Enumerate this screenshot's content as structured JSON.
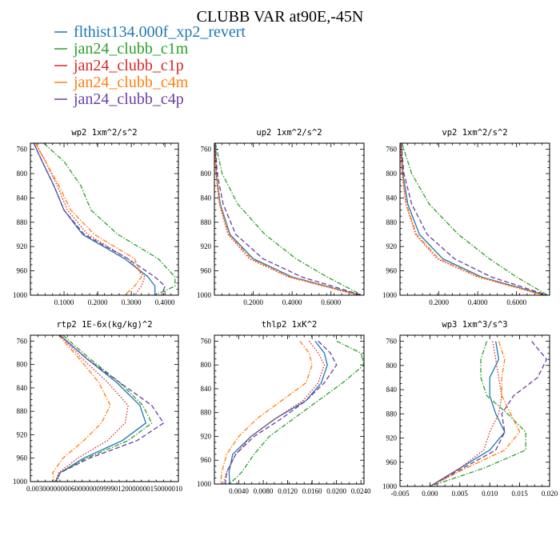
{
  "figure": {
    "title": "CLUBB VAR at90E,-45N",
    "legend": [
      {
        "label": "flthist134.000f_xp2_revert",
        "color": "#1f77b4",
        "dash": "solid"
      },
      {
        "label": "jan24_clubb_c1m",
        "color": "#2ca02c",
        "dash": "dashdot"
      },
      {
        "label": "jan24_clubb_c1p",
        "color": "#d62728",
        "dash": "dotted"
      },
      {
        "label": "jan24_clubb_c4m",
        "color": "#ff7f0e",
        "dash": "dashdot"
      },
      {
        "label": "jan24_clubb_c4p",
        "color": "#6b3fa0",
        "dash": "dashed"
      }
    ]
  },
  "chart_data": [
    {
      "type": "line",
      "title": "wp2  1xm^2/s^2",
      "xlim": [
        0,
        0.44
      ],
      "ylim": [
        750,
        1000
      ],
      "y_inverted": true,
      "yticks": [
        760,
        800,
        840,
        880,
        920,
        960,
        1000
      ],
      "xticks": [
        0.1,
        0.2,
        0.3,
        0.4
      ],
      "xtick_labels": [
        "0.1000",
        "0.2000",
        "0.3000",
        "0.4000"
      ],
      "series": [
        {
          "y": [
            750,
            780,
            820,
            860,
            900,
            940,
            970,
            985,
            1000
          ],
          "x": [
            0.01,
            0.035,
            0.07,
            0.1,
            0.155,
            0.28,
            0.35,
            0.37,
            0.37
          ]
        },
        {
          "y": [
            750,
            780,
            820,
            860,
            900,
            940,
            970,
            985,
            1000
          ],
          "x": [
            0.04,
            0.1,
            0.15,
            0.18,
            0.26,
            0.38,
            0.43,
            0.43,
            0.37
          ]
        },
        {
          "y": [
            750,
            780,
            820,
            860,
            900,
            940,
            970,
            985,
            1000
          ],
          "x": [
            0.015,
            0.045,
            0.08,
            0.11,
            0.17,
            0.29,
            0.34,
            0.33,
            0.31
          ]
        },
        {
          "y": [
            750,
            780,
            820,
            860,
            900,
            940,
            970,
            985,
            1000
          ],
          "x": [
            0.015,
            0.045,
            0.085,
            0.12,
            0.19,
            0.31,
            0.33,
            0.31,
            0.28
          ]
        },
        {
          "y": [
            750,
            780,
            820,
            860,
            900,
            940,
            970,
            985,
            1000
          ],
          "x": [
            0.01,
            0.035,
            0.07,
            0.1,
            0.16,
            0.29,
            0.37,
            0.4,
            0.39
          ]
        }
      ]
    },
    {
      "type": "line",
      "title": "up2  1xm^2/s^2",
      "xlim": [
        0,
        0.77
      ],
      "ylim": [
        750,
        1000
      ],
      "y_inverted": true,
      "yticks": [
        760,
        800,
        840,
        880,
        920,
        960,
        1000
      ],
      "xticks": [
        0.2,
        0.4,
        0.6
      ],
      "xtick_labels": [
        "0.2000",
        "0.4000",
        "0.6000"
      ],
      "series": [
        {
          "y": [
            750,
            800,
            850,
            900,
            940,
            970,
            1000
          ],
          "x": [
            0.003,
            0.01,
            0.03,
            0.08,
            0.2,
            0.4,
            0.75
          ]
        },
        {
          "y": [
            750,
            800,
            850,
            900,
            940,
            970,
            1000
          ],
          "x": [
            0.005,
            0.04,
            0.12,
            0.26,
            0.42,
            0.58,
            0.76
          ]
        },
        {
          "y": [
            750,
            800,
            850,
            900,
            940,
            970,
            1000
          ],
          "x": [
            0.002,
            0.008,
            0.025,
            0.07,
            0.18,
            0.38,
            0.74
          ]
        },
        {
          "y": [
            750,
            800,
            850,
            900,
            940,
            970,
            1000
          ],
          "x": [
            0.002,
            0.009,
            0.028,
            0.075,
            0.19,
            0.39,
            0.75
          ]
        },
        {
          "y": [
            750,
            800,
            850,
            900,
            940,
            970,
            1000
          ],
          "x": [
            0.004,
            0.015,
            0.045,
            0.11,
            0.25,
            0.45,
            0.76
          ]
        }
      ]
    },
    {
      "type": "line",
      "title": "vp2  1xm^2/s^2",
      "xlim": [
        0,
        0.77
      ],
      "ylim": [
        750,
        1000
      ],
      "y_inverted": true,
      "yticks": [
        760,
        800,
        840,
        880,
        920,
        960,
        1000
      ],
      "xticks": [
        0.2,
        0.4,
        0.6
      ],
      "xtick_labels": [
        "0.2000",
        "0.4000",
        "0.6000"
      ],
      "series": [
        {
          "y": [
            750,
            800,
            850,
            900,
            940,
            970,
            1000
          ],
          "x": [
            0.005,
            0.015,
            0.04,
            0.1,
            0.22,
            0.42,
            0.75
          ]
        },
        {
          "y": [
            750,
            800,
            850,
            900,
            940,
            970,
            1000
          ],
          "x": [
            0.01,
            0.06,
            0.15,
            0.3,
            0.46,
            0.6,
            0.76
          ]
        },
        {
          "y": [
            750,
            800,
            850,
            900,
            940,
            970,
            1000
          ],
          "x": [
            0.003,
            0.01,
            0.03,
            0.08,
            0.19,
            0.4,
            0.74
          ]
        },
        {
          "y": [
            750,
            800,
            850,
            900,
            940,
            970,
            1000
          ],
          "x": [
            0.003,
            0.012,
            0.033,
            0.085,
            0.2,
            0.41,
            0.74
          ]
        },
        {
          "y": [
            750,
            800,
            850,
            900,
            940,
            970,
            1000
          ],
          "x": [
            0.006,
            0.02,
            0.06,
            0.14,
            0.28,
            0.47,
            0.76
          ]
        }
      ]
    },
    {
      "type": "line",
      "title": "rtp2  1E-6x(kg/kg)^2",
      "xlim": [
        0.0,
        1.0
      ],
      "ylim": [
        750,
        1000
      ],
      "y_inverted": true,
      "yticks": [
        760,
        800,
        840,
        880,
        920,
        960,
        1000
      ],
      "xticks": [],
      "xtick_labels": [],
      "x_axis_text": "0.003000000006000000099990120000000150000010",
      "series": [
        {
          "y": [
            750,
            790,
            830,
            870,
            900,
            930,
            960,
            985,
            1000
          ],
          "x": [
            0.2,
            0.38,
            0.58,
            0.74,
            0.78,
            0.62,
            0.36,
            0.2,
            0.17
          ]
        },
        {
          "y": [
            750,
            790,
            830,
            870,
            900,
            930,
            960,
            985,
            1000
          ],
          "x": [
            0.22,
            0.4,
            0.6,
            0.76,
            0.82,
            0.66,
            0.38,
            0.2,
            0.18
          ]
        },
        {
          "y": [
            750,
            790,
            830,
            870,
            900,
            930,
            960,
            985,
            1000
          ],
          "x": [
            0.2,
            0.35,
            0.52,
            0.66,
            0.64,
            0.52,
            0.32,
            0.19,
            0.17
          ]
        },
        {
          "y": [
            750,
            790,
            830,
            870,
            900,
            930,
            960,
            985,
            1000
          ],
          "x": [
            0.19,
            0.33,
            0.46,
            0.54,
            0.48,
            0.36,
            0.22,
            0.15,
            0.16
          ]
        },
        {
          "y": [
            750,
            790,
            830,
            870,
            900,
            930,
            960,
            985,
            1000
          ],
          "x": [
            0.2,
            0.38,
            0.6,
            0.82,
            0.9,
            0.72,
            0.4,
            0.2,
            0.17
          ]
        }
      ]
    },
    {
      "type": "line",
      "title": "thlp2  1xK^2",
      "xlim": [
        0,
        0.0245
      ],
      "ylim": [
        750,
        1000
      ],
      "y_inverted": true,
      "yticks": [
        760,
        800,
        840,
        880,
        920,
        960,
        1000
      ],
      "xticks": [
        0.004,
        0.008,
        0.012,
        0.016,
        0.02,
        0.024
      ],
      "xtick_labels": [
        "0.0040",
        "0.0080",
        "0.0120",
        "0.0160",
        "0.0200",
        "0.0240"
      ],
      "series": [
        {
          "y": [
            760,
            780,
            800,
            830,
            860,
            890,
            920,
            950,
            980,
            1000
          ],
          "x": [
            0.0165,
            0.018,
            0.0185,
            0.0175,
            0.015,
            0.01,
            0.006,
            0.003,
            0.0024,
            0.0025
          ]
        },
        {
          "y": [
            760,
            780,
            800,
            830,
            860,
            890,
            920,
            950,
            980,
            1000
          ],
          "x": [
            0.02,
            0.024,
            0.0245,
            0.021,
            0.017,
            0.013,
            0.009,
            0.0065,
            0.0045,
            0.0025
          ]
        },
        {
          "y": [
            760,
            780,
            800,
            830,
            860,
            890,
            920,
            950,
            980,
            1000
          ],
          "x": [
            0.0155,
            0.017,
            0.018,
            0.017,
            0.0145,
            0.01,
            0.006,
            0.0035,
            0.002,
            0.0015
          ]
        },
        {
          "y": [
            760,
            780,
            800,
            830,
            860,
            890,
            920,
            950,
            980,
            1000
          ],
          "x": [
            0.014,
            0.0155,
            0.016,
            0.015,
            0.011,
            0.007,
            0.004,
            0.002,
            0.0012,
            0.001
          ]
        },
        {
          "y": [
            760,
            780,
            800,
            830,
            860,
            890,
            920,
            950,
            980,
            1000
          ],
          "x": [
            0.017,
            0.019,
            0.02,
            0.018,
            0.015,
            0.011,
            0.0065,
            0.0035,
            0.002,
            0.0018
          ]
        }
      ]
    },
    {
      "type": "line",
      "title": "wp3  1xm^3/s^3",
      "xlim": [
        -0.005,
        0.02
      ],
      "ylim": [
        750,
        1000
      ],
      "y_inverted": true,
      "yticks": [
        760,
        800,
        840,
        880,
        920,
        960,
        1000
      ],
      "xticks": [
        -0.005,
        0.0,
        0.005,
        0.01,
        0.015,
        0.02
      ],
      "xtick_labels": [
        "-0.005",
        "0.000",
        "0.005",
        "0.010",
        "0.015",
        "0.020"
      ],
      "series": [
        {
          "y": [
            760,
            790,
            820,
            850,
            880,
            910,
            940,
            970,
            1000
          ],
          "x": [
            0.011,
            0.0115,
            0.01,
            0.01,
            0.011,
            0.0125,
            0.01,
            0.005,
            0.0
          ]
        },
        {
          "y": [
            760,
            790,
            820,
            850,
            880,
            910,
            940,
            970,
            1000
          ],
          "x": [
            0.0095,
            0.0085,
            0.0085,
            0.0095,
            0.013,
            0.016,
            0.016,
            0.009,
            0.0
          ]
        },
        {
          "y": [
            760,
            790,
            820,
            850,
            880,
            910,
            940,
            970,
            1000
          ],
          "x": [
            0.0105,
            0.011,
            0.0115,
            0.012,
            0.0115,
            0.01,
            0.009,
            0.005,
            0.0
          ]
        },
        {
          "y": [
            760,
            790,
            820,
            850,
            880,
            910,
            940,
            970,
            1000
          ],
          "x": [
            0.0115,
            0.0125,
            0.012,
            0.012,
            0.0135,
            0.015,
            0.0125,
            0.006,
            0.0
          ]
        },
        {
          "y": [
            760,
            790,
            820,
            850,
            880,
            910,
            940,
            970,
            1000
          ],
          "x": [
            0.017,
            0.0195,
            0.018,
            0.014,
            0.012,
            0.0125,
            0.011,
            0.0055,
            0.0
          ]
        }
      ]
    }
  ]
}
